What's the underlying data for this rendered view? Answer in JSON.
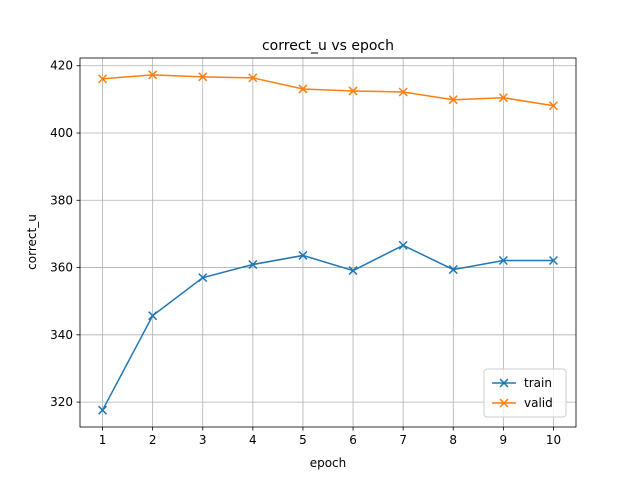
{
  "chart_data": {
    "type": "line",
    "title": "correct_u vs epoch",
    "x_label": "epoch",
    "y_label": "correct_u",
    "x": [
      1,
      2,
      3,
      4,
      5,
      6,
      7,
      8,
      9,
      10
    ],
    "series": [
      {
        "name": "train",
        "color": "#1f77b4",
        "values": [
          317.6,
          345.7,
          357.0,
          360.9,
          363.6,
          359.1,
          366.6,
          359.4,
          362.1,
          362.1
        ]
      },
      {
        "name": "valid",
        "color": "#ff7f0e",
        "values": [
          416.1,
          417.3,
          416.7,
          416.4,
          413.1,
          412.5,
          412.2,
          409.9,
          410.5,
          408.1
        ]
      }
    ],
    "xlim": [
      0.55,
      10.45
    ],
    "xticks": [
      1,
      2,
      3,
      4,
      5,
      6,
      7,
      8,
      9,
      10
    ],
    "ylim": [
      312.6,
      422.3
    ],
    "yticks": [
      320,
      340,
      360,
      380,
      400,
      420
    ],
    "grid": true,
    "legend": "lower right"
  }
}
